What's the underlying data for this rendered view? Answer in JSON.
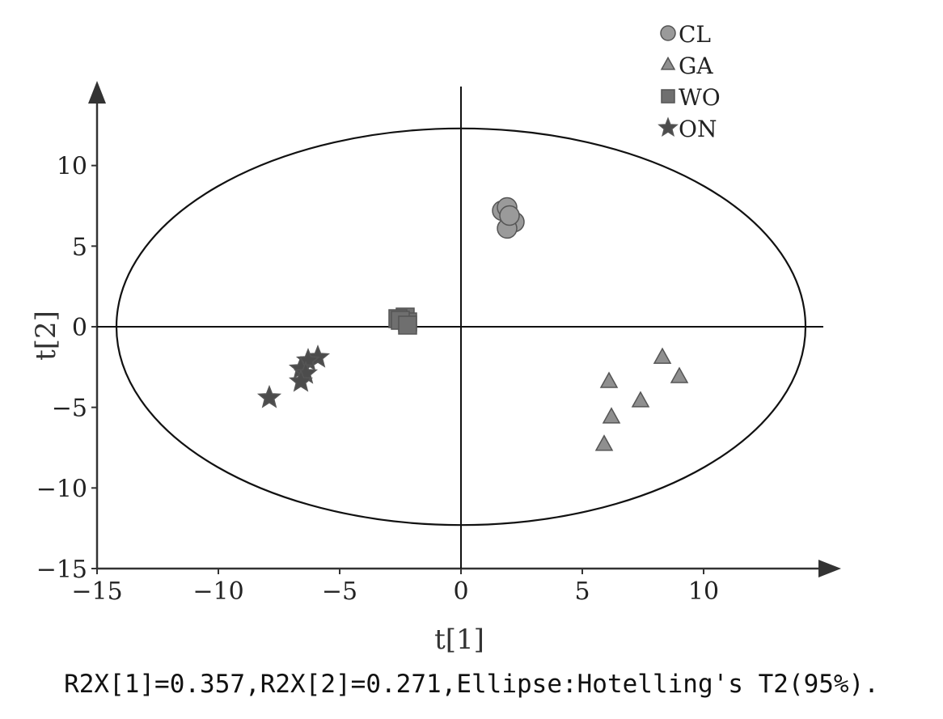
{
  "chart_data": {
    "type": "scatter",
    "xlabel": "t[1]",
    "ylabel": "t[2]",
    "xlim": [
      -15,
      15
    ],
    "ylim": [
      -15,
      15
    ],
    "xticks": [
      "−15",
      "−10",
      "−5",
      "0",
      "5",
      "10"
    ],
    "yticks": [
      "10",
      "5",
      "0",
      "−5",
      "−10",
      "−15"
    ],
    "legend_position": "top-right",
    "ellipse": {
      "label": "Hotelling's T2 (95%)",
      "rx": 14.2,
      "ry": 12.3
    },
    "series": [
      {
        "name": "CL",
        "marker": "circle",
        "color": "#9a9a9a",
        "points": [
          [
            1.7,
            7.2
          ],
          [
            1.9,
            7.4
          ],
          [
            2.2,
            6.5
          ],
          [
            1.9,
            6.1
          ],
          [
            2.0,
            6.9
          ]
        ]
      },
      {
        "name": "GA",
        "marker": "triangle",
        "color": "#8f8f8f",
        "points": [
          [
            8.3,
            -1.9
          ],
          [
            9.0,
            -3.1
          ],
          [
            6.1,
            -3.4
          ],
          [
            7.4,
            -4.6
          ],
          [
            6.2,
            -5.6
          ],
          [
            5.9,
            -7.3
          ]
        ]
      },
      {
        "name": "WO",
        "marker": "square",
        "color": "#6f6f6f",
        "points": [
          [
            -2.3,
            0.6
          ],
          [
            -2.6,
            0.5
          ],
          [
            -2.2,
            0.3
          ],
          [
            -2.5,
            0.4
          ],
          [
            -2.2,
            0.1
          ]
        ]
      },
      {
        "name": "ON",
        "marker": "star",
        "color": "#4c4c4c",
        "points": [
          [
            -5.9,
            -1.9
          ],
          [
            -6.3,
            -2.1
          ],
          [
            -6.6,
            -2.6
          ],
          [
            -6.4,
            -2.9
          ],
          [
            -6.6,
            -3.4
          ],
          [
            -7.9,
            -4.4
          ]
        ]
      }
    ]
  },
  "caption": "R2X[1]=0.357,R2X[2]=0.271,Ellipse:Hotelling's T2(95%)."
}
